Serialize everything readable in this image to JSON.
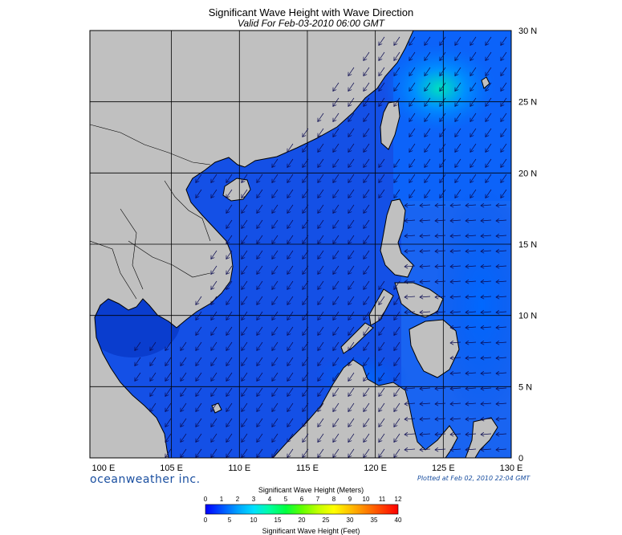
{
  "header": {
    "title": "Significant Wave Height with Wave Direction",
    "subtitle": "Valid For Feb-03-2010 06:00 GMT"
  },
  "map": {
    "lon_labels": [
      "100 E",
      "105 E",
      "110 E",
      "115 E",
      "120 E",
      "125 E",
      "130 E"
    ],
    "lat_labels": [
      "30 N",
      "25 N",
      "20 N",
      "15 N",
      "10 N",
      "5 N",
      "0"
    ],
    "lon_range": [
      99,
      130
    ],
    "lat_range": [
      0,
      30
    ],
    "land_color": "#c0c0c0",
    "sea_color": "#1450e6",
    "arrow_color": "#0a0a50"
  },
  "footer": {
    "brand": "oceanweather inc.",
    "plotted": "Plotted at Feb 02, 2010 22:04 GMT"
  },
  "colorbar": {
    "title_top": "Significant Wave Height (Meters)",
    "title_bottom": "Significant Wave Height (Feet)",
    "meters": [
      "0",
      "1",
      "2",
      "3",
      "4",
      "5",
      "6",
      "7",
      "8",
      "9",
      "10",
      "11",
      "12"
    ],
    "feet": [
      "0",
      "5",
      "10",
      "15",
      "20",
      "25",
      "30",
      "35",
      "40"
    ],
    "colors": [
      "#0000ff",
      "#0050ff",
      "#00a0ff",
      "#00e0ff",
      "#00ffa0",
      "#00ff40",
      "#60ff00",
      "#c0ff00",
      "#ffff00",
      "#ffc000",
      "#ff8000",
      "#ff4000",
      "#ff0000"
    ]
  }
}
